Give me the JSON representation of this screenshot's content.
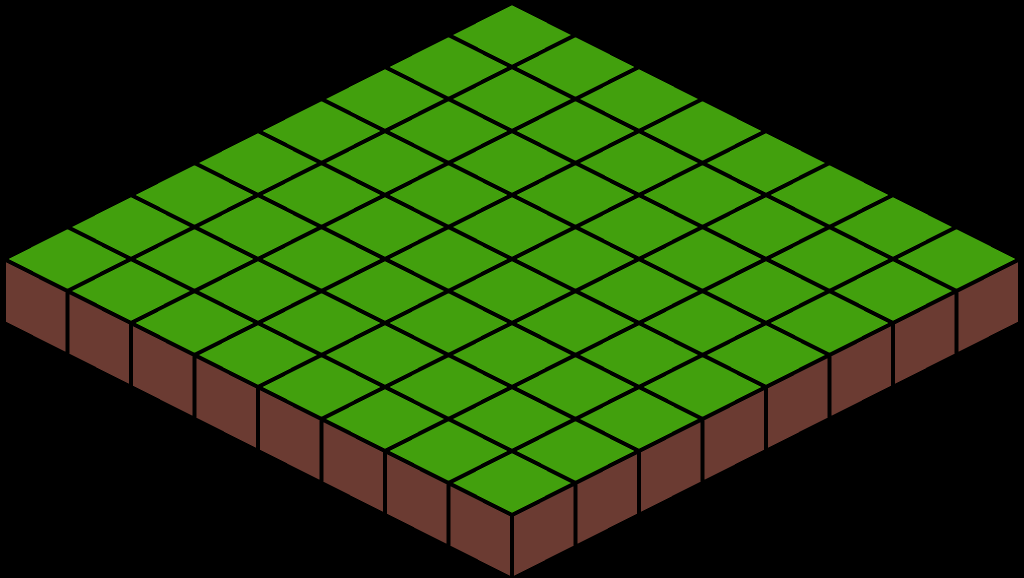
{
  "scene": {
    "type": "isometric-tile-platform",
    "grid": {
      "rows": 8,
      "cols": 8
    },
    "colors": {
      "background": "#000000",
      "grass_top": "#42a00d",
      "dirt_side": "#6b3b32",
      "outline": "#000000"
    }
  }
}
